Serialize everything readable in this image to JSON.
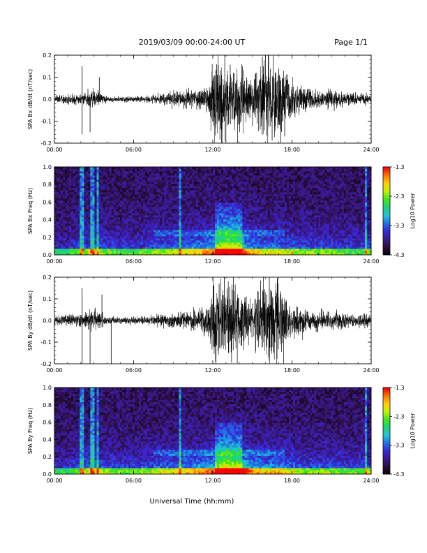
{
  "header": {
    "title": "2019/03/09   00:00-24:00 UT",
    "page": "Page 1/1"
  },
  "footer": {
    "xlabel": "Universal Time (hh:mm)"
  },
  "colors": {
    "trace": "#000000",
    "colormap": [
      "#000000",
      "#2a0d3e",
      "#3a1a8c",
      "#3a26d8",
      "#1e6fe6",
      "#1fc6d8",
      "#18d27b",
      "#3fe61e",
      "#c4f000",
      "#ffd400",
      "#ff7a00",
      "#ff0000"
    ]
  },
  "chart_data": [
    {
      "type": "line",
      "ylabel": "SPA Bx dB/dt (nT/sec)",
      "ylim": [
        -0.2,
        0.2
      ],
      "yticks": [
        "0.2",
        "0.1",
        "0.0",
        "-0.1",
        "-0.2"
      ],
      "xlim": [
        "00:00",
        "24:00"
      ],
      "xticks": [
        "00:00",
        "06:00",
        "12:00",
        "18:00",
        "24:00"
      ],
      "amplitude_envelope": {
        "hours": [
          0,
          1,
          2,
          3,
          4,
          5,
          6,
          7,
          8,
          9,
          10,
          11,
          11.7,
          12,
          13,
          14,
          15,
          15.5,
          16,
          17,
          18,
          19,
          20,
          21,
          22,
          23,
          24
        ],
        "amplitude": [
          0.02,
          0.025,
          0.035,
          0.05,
          0.02,
          0.015,
          0.015,
          0.02,
          0.03,
          0.04,
          0.05,
          0.06,
          0.08,
          0.25,
          0.25,
          0.2,
          0.12,
          0.2,
          0.25,
          0.25,
          0.1,
          0.07,
          0.05,
          0.05,
          0.04,
          0.03,
          0.03
        ]
      },
      "spikes": [
        {
          "hour": 2.1,
          "value": -0.16
        },
        {
          "hour": 2.1,
          "value": 0.15
        },
        {
          "hour": 2.7,
          "value": -0.15
        },
        {
          "hour": 3.4,
          "value": 0.1
        }
      ]
    },
    {
      "type": "heatmap",
      "ylabel": "SPA Bx Freq (Hz)",
      "ylim": [
        0.0,
        1.0
      ],
      "yticks": [
        "1.0",
        "0.8",
        "0.6",
        "0.4",
        "0.2",
        "0.0"
      ],
      "xlim": [
        "00:00",
        "24:00"
      ],
      "xticks": [
        "00:00",
        "06:00",
        "12:00",
        "18:00",
        "24:00"
      ],
      "colorbar": {
        "label": "Log10 Power",
        "ticks": [
          "-1.3",
          "-2.3",
          "-3.3",
          "-4.3"
        ],
        "range": [
          -4.3,
          -1.3
        ]
      },
      "intensity_profile": {
        "hours": [
          0,
          1,
          2,
          3,
          4,
          5,
          6,
          7,
          8,
          9,
          10,
          11,
          12,
          13,
          14,
          15,
          16,
          17,
          18,
          19,
          20,
          21,
          22,
          23,
          24
        ],
        "level": [
          0.2,
          0.2,
          0.3,
          0.35,
          0.3,
          0.25,
          0.25,
          0.3,
          0.35,
          0.35,
          0.4,
          0.45,
          0.55,
          0.8,
          0.7,
          0.45,
          0.4,
          0.4,
          0.35,
          0.3,
          0.3,
          0.3,
          0.25,
          0.25,
          0.3
        ]
      },
      "vertical_bands": [
        2.1,
        2.9,
        3.3,
        9.5,
        23.6
      ]
    },
    {
      "type": "line",
      "ylabel": "SPA By dB/dt (nT/sec)",
      "ylim": [
        -0.2,
        0.2
      ],
      "yticks": [
        "0.2",
        "0.1",
        "0.0",
        "-0.1",
        "-0.2"
      ],
      "xlim": [
        "00:00",
        "24:00"
      ],
      "xticks": [
        "00:00",
        "06:00",
        "12:00",
        "18:00",
        "24:00"
      ],
      "amplitude_envelope": {
        "hours": [
          0,
          1,
          2,
          3,
          4,
          5,
          6,
          7,
          8,
          9,
          10,
          11,
          11.7,
          12,
          13,
          14,
          15,
          15.5,
          16,
          17,
          18,
          19,
          20,
          21,
          22,
          23,
          24
        ],
        "amplitude": [
          0.025,
          0.03,
          0.04,
          0.06,
          0.025,
          0.02,
          0.02,
          0.025,
          0.035,
          0.045,
          0.05,
          0.06,
          0.08,
          0.25,
          0.25,
          0.2,
          0.1,
          0.2,
          0.25,
          0.25,
          0.1,
          0.07,
          0.06,
          0.05,
          0.05,
          0.04,
          0.04
        ]
      },
      "spikes": [
        {
          "hour": 2.1,
          "value": -0.2
        },
        {
          "hour": 2.7,
          "value": -0.2
        },
        {
          "hour": 2.1,
          "value": 0.15
        },
        {
          "hour": 3.6,
          "value": 0.12
        },
        {
          "hour": 4.3,
          "value": -0.2
        }
      ]
    },
    {
      "type": "heatmap",
      "ylabel": "SPA By Freq (Hz)",
      "ylim": [
        0.0,
        1.0
      ],
      "yticks": [
        "1.0",
        "0.8",
        "0.6",
        "0.4",
        "0.2",
        "0.0"
      ],
      "xlim": [
        "00:00",
        "24:00"
      ],
      "xticks": [
        "00:00",
        "06:00",
        "12:00",
        "18:00",
        "24:00"
      ],
      "colorbar": {
        "label": "Log10 Power",
        "ticks": [
          "-1.3",
          "-2.3",
          "-3.3",
          "-4.3"
        ],
        "range": [
          -4.3,
          -1.3
        ]
      },
      "intensity_profile": {
        "hours": [
          0,
          1,
          2,
          3,
          4,
          5,
          6,
          7,
          8,
          9,
          10,
          11,
          12,
          13,
          14,
          15,
          16,
          17,
          18,
          19,
          20,
          21,
          22,
          23,
          24
        ],
        "level": [
          0.22,
          0.22,
          0.32,
          0.38,
          0.32,
          0.28,
          0.28,
          0.32,
          0.38,
          0.4,
          0.42,
          0.48,
          0.58,
          0.82,
          0.72,
          0.5,
          0.45,
          0.45,
          0.38,
          0.32,
          0.32,
          0.32,
          0.28,
          0.28,
          0.32
        ]
      },
      "vertical_bands": [
        2.1,
        2.9,
        3.3,
        9.5,
        23.6
      ]
    }
  ]
}
